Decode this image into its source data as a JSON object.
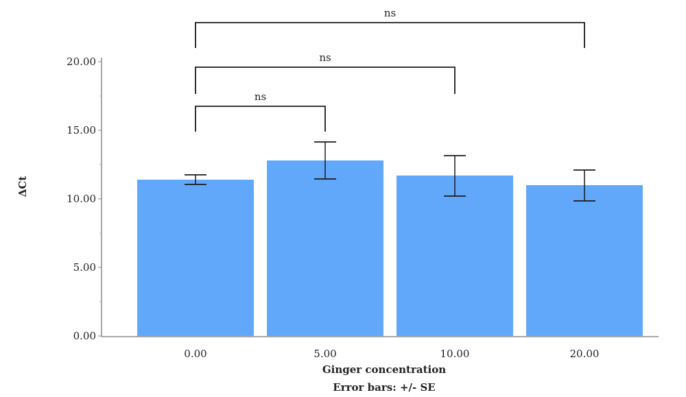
{
  "chart_data": {
    "type": "bar",
    "categories": [
      "0.00",
      "5.00",
      "10.00",
      "20.00"
    ],
    "values": [
      11.4,
      12.8,
      11.7,
      11.0
    ],
    "error_bars": {
      "type": "SE",
      "lower": [
        11.05,
        11.45,
        10.2,
        9.85
      ],
      "upper": [
        11.75,
        14.15,
        13.15,
        12.1
      ]
    },
    "ylim": [
      0,
      20
    ],
    "yticks": [
      "0.00",
      "5.00",
      "10.00",
      "15.00",
      "20.00"
    ],
    "ytick_values": [
      0,
      5,
      10,
      15,
      20
    ],
    "xlabel": "Ginger concentration",
    "ylabel": "ΔCt",
    "footnote": "Error bars: +/- SE",
    "bar_color": "#62a8fa",
    "comparisons": [
      {
        "from": 0,
        "to": 2,
        "label": "ns"
      },
      {
        "from": 0,
        "to": 3,
        "label": "ns"
      },
      {
        "from": 0,
        "to": 1,
        "label": "ns"
      }
    ]
  }
}
